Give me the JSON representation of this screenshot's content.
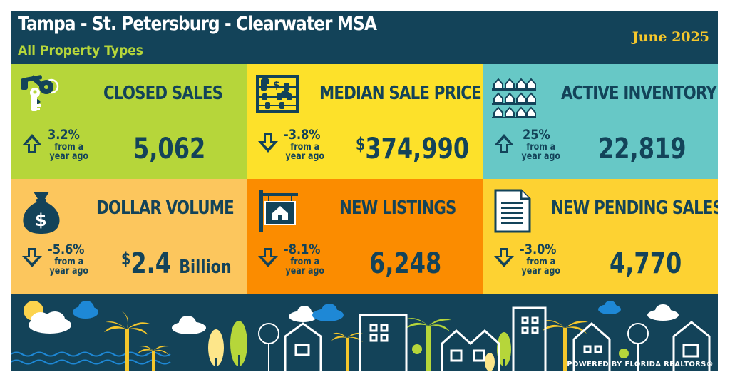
{
  "header": {
    "title": "Tampa - St. Petersburg - Clearwater MSA",
    "subtitle": "All Property Types",
    "date": "June 2025"
  },
  "tiles": [
    {
      "title": "CLOSED SALES",
      "change": "3.2%",
      "direction": "up",
      "from_line1": "from a",
      "from_line2": "year ago",
      "value": "5,062",
      "color": "#b6d63a",
      "icon": "keys-icon"
    },
    {
      "title": "MEDIAN SALE PRICE",
      "change": "-3.8%",
      "direction": "down",
      "from_line1": "from a",
      "from_line2": "year ago",
      "value_prefix": "$",
      "value": "374,990",
      "color": "#fde12a",
      "icon": "abacus-icon"
    },
    {
      "title": "ACTIVE INVENTORY",
      "change": "25%",
      "direction": "up",
      "from_line1": "from a",
      "from_line2": "year ago",
      "value": "22,819",
      "color": "#67c8c6",
      "icon": "houses-grid-icon"
    },
    {
      "title": "DOLLAR VOLUME",
      "change": "-5.6%",
      "direction": "down",
      "from_line1": "from a",
      "from_line2": "year ago",
      "value_prefix": "$",
      "value": "2.4",
      "value_suffix": "Billion",
      "color": "#fcc65d",
      "icon": "money-bag-icon"
    },
    {
      "title": "NEW LISTINGS",
      "change": "-8.1%",
      "direction": "down",
      "from_line1": "from a",
      "from_line2": "year ago",
      "value": "6,248",
      "color": "#fb8c00",
      "icon": "listing-sign-icon"
    },
    {
      "title": "NEW PENDING SALES",
      "change": "-3.0%",
      "direction": "down",
      "from_line1": "from a",
      "from_line2": "year ago",
      "value": "4,770",
      "color": "#fdd232",
      "icon": "document-icon"
    }
  ],
  "footer": {
    "powered_by": "POWERED BY FLORIDA REALTORS®"
  },
  "colors": {
    "navy": "#134359",
    "green": "#b6d63a",
    "gold": "#f5c72c",
    "sky_blue": "#1e88d6"
  }
}
